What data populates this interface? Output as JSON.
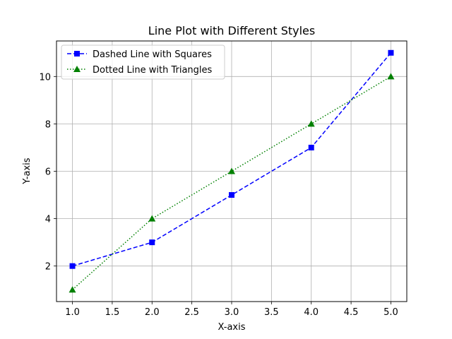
{
  "chart_data": {
    "type": "line",
    "title": "Line Plot with Different Styles",
    "xlabel": "X-axis",
    "ylabel": "Y-axis",
    "xlim": [
      0.8,
      5.2
    ],
    "ylim": [
      0.5,
      11.5
    ],
    "xticks": [
      1.0,
      1.5,
      2.0,
      2.5,
      3.0,
      3.5,
      4.0,
      4.5,
      5.0
    ],
    "xtick_labels": [
      "1.0",
      "1.5",
      "2.0",
      "2.5",
      "3.0",
      "3.5",
      "4.0",
      "4.5",
      "5.0"
    ],
    "yticks": [
      2,
      4,
      6,
      8,
      10
    ],
    "ytick_labels": [
      "2",
      "4",
      "6",
      "8",
      "10"
    ],
    "grid": true,
    "legend_position": "top-left",
    "series": [
      {
        "name": "Dashed Line with Squares",
        "x": [
          1,
          2,
          3,
          4,
          5
        ],
        "y": [
          2,
          3,
          5,
          7,
          11
        ],
        "color": "#0000ff",
        "line_style": "dashed",
        "marker": "square"
      },
      {
        "name": "Dotted Line with Triangles",
        "x": [
          1,
          2,
          3,
          4,
          5
        ],
        "y": [
          1,
          4,
          6,
          8,
          10
        ],
        "color": "#008000",
        "line_style": "dotted",
        "marker": "triangle"
      }
    ]
  }
}
